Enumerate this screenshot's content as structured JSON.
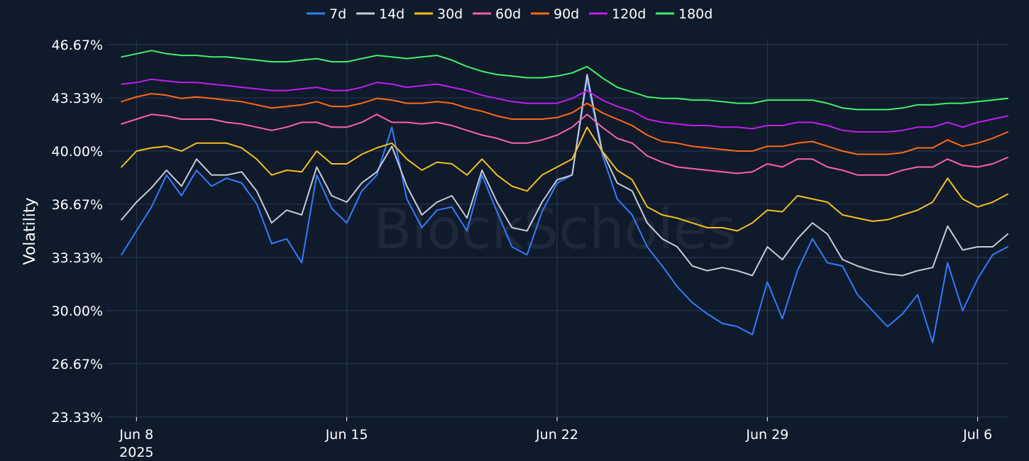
{
  "watermark": "BlockScholes",
  "chart_data": {
    "type": "line",
    "title": "",
    "ylabel": "Volatility",
    "xlabel": "",
    "ylim": [
      23.33,
      46.67
    ],
    "xlim": [
      "2025-06-07",
      "2025-07-07"
    ],
    "grid": true,
    "legend_position": "top-center",
    "y_ticks": [
      {
        "value": 46.67,
        "label": "46.67%"
      },
      {
        "value": 43.33,
        "label": "43.33%"
      },
      {
        "value": 40.0,
        "label": "40.00%"
      },
      {
        "value": 36.67,
        "label": "36.67%"
      },
      {
        "value": 33.33,
        "label": "33.33%"
      },
      {
        "value": 30.0,
        "label": "30.00%"
      },
      {
        "value": 26.67,
        "label": "26.67%"
      },
      {
        "value": 23.33,
        "label": "23.33%"
      }
    ],
    "x_ticks": [
      {
        "date": "2025-06-08",
        "label": "Jun 8",
        "sublabel": "2025"
      },
      {
        "date": "2025-06-15",
        "label": "Jun 15",
        "sublabel": ""
      },
      {
        "date": "2025-06-22",
        "label": "Jun 22",
        "sublabel": ""
      },
      {
        "date": "2025-06-29",
        "label": "Jun 29",
        "sublabel": ""
      },
      {
        "date": "2025-07-06",
        "label": "Jul 6",
        "sublabel": ""
      }
    ],
    "x": [
      "2025-06-07 12:00",
      "2025-06-08 00:00",
      "2025-06-08 12:00",
      "2025-06-09 00:00",
      "2025-06-09 12:00",
      "2025-06-10 00:00",
      "2025-06-10 12:00",
      "2025-06-11 00:00",
      "2025-06-11 12:00",
      "2025-06-12 00:00",
      "2025-06-12 12:00",
      "2025-06-13 00:00",
      "2025-06-13 12:00",
      "2025-06-14 00:00",
      "2025-06-14 12:00",
      "2025-06-15 00:00",
      "2025-06-15 12:00",
      "2025-06-16 00:00",
      "2025-06-16 12:00",
      "2025-06-17 00:00",
      "2025-06-17 12:00",
      "2025-06-18 00:00",
      "2025-06-18 12:00",
      "2025-06-19 00:00",
      "2025-06-19 12:00",
      "2025-06-20 00:00",
      "2025-06-20 12:00",
      "2025-06-21 00:00",
      "2025-06-21 12:00",
      "2025-06-22 00:00",
      "2025-06-22 12:00",
      "2025-06-23 00:00",
      "2025-06-23 12:00",
      "2025-06-24 00:00",
      "2025-06-24 12:00",
      "2025-06-25 00:00",
      "2025-06-25 12:00",
      "2025-06-26 00:00",
      "2025-06-26 12:00",
      "2025-06-27 00:00",
      "2025-06-27 12:00",
      "2025-06-28 00:00",
      "2025-06-28 12:00",
      "2025-06-29 00:00",
      "2025-06-29 12:00",
      "2025-06-30 00:00",
      "2025-06-30 12:00",
      "2025-07-01 00:00",
      "2025-07-01 12:00",
      "2025-07-02 00:00",
      "2025-07-02 12:00",
      "2025-07-03 00:00",
      "2025-07-03 12:00",
      "2025-07-04 00:00",
      "2025-07-04 12:00",
      "2025-07-05 00:00",
      "2025-07-05 12:00",
      "2025-07-06 00:00",
      "2025-07-06 12:00",
      "2025-07-07 00:00"
    ],
    "series": [
      {
        "name": "7d",
        "color": "#2f7dff",
        "values": [
          33.5,
          35.0,
          36.5,
          38.5,
          37.2,
          38.8,
          37.8,
          38.3,
          38.0,
          36.7,
          34.2,
          34.5,
          33.0,
          38.5,
          36.4,
          35.5,
          37.5,
          38.5,
          41.5,
          37.0,
          35.2,
          36.3,
          36.5,
          35.0,
          38.5,
          36.2,
          34.0,
          33.5,
          36.2,
          38.0,
          38.5,
          44.5,
          39.8,
          37.0,
          36.0,
          34.0,
          32.8,
          31.5,
          30.5,
          29.8,
          29.2,
          29.0,
          28.5,
          31.8,
          29.5,
          32.5,
          34.5,
          33.0,
          32.8,
          31.0,
          30.0,
          29.0,
          29.8,
          31.0,
          28.0,
          33.0,
          30.0,
          32.0,
          33.5,
          34.0
        ]
      },
      {
        "name": "14d",
        "color": "#c8ccd6",
        "values": [
          35.7,
          36.8,
          37.7,
          38.8,
          37.8,
          39.5,
          38.5,
          38.5,
          38.7,
          37.5,
          35.5,
          36.3,
          36.0,
          39.0,
          37.2,
          36.8,
          38.0,
          38.7,
          40.3,
          37.8,
          36.0,
          36.8,
          37.2,
          35.8,
          38.8,
          36.8,
          35.2,
          35.0,
          36.8,
          38.2,
          38.5,
          44.8,
          40.0,
          38.0,
          37.5,
          35.5,
          34.5,
          34.0,
          32.8,
          32.5,
          32.7,
          32.5,
          32.2,
          34.0,
          33.2,
          34.5,
          35.5,
          34.8,
          33.2,
          32.8,
          32.5,
          32.3,
          32.2,
          32.5,
          32.7,
          35.3,
          33.8,
          34.0,
          34.0,
          34.8
        ]
      },
      {
        "name": "30d",
        "color": "#f5c01a",
        "values": [
          39.0,
          40.0,
          40.2,
          40.3,
          40.0,
          40.5,
          40.5,
          40.5,
          40.2,
          39.5,
          38.5,
          38.8,
          38.7,
          40.0,
          39.2,
          39.2,
          39.8,
          40.2,
          40.5,
          39.5,
          38.8,
          39.3,
          39.2,
          38.5,
          39.5,
          38.5,
          37.8,
          37.5,
          38.5,
          39.0,
          39.5,
          41.5,
          40.0,
          38.8,
          38.2,
          36.5,
          36.0,
          35.8,
          35.5,
          35.2,
          35.2,
          35.0,
          35.5,
          36.3,
          36.2,
          37.2,
          37.0,
          36.8,
          36.0,
          35.8,
          35.6,
          35.7,
          36.0,
          36.3,
          36.8,
          38.3,
          37.0,
          36.5,
          36.8,
          37.3
        ]
      },
      {
        "name": "60d",
        "color": "#ff5fab",
        "values": [
          41.7,
          42.0,
          42.3,
          42.2,
          42.0,
          42.0,
          42.0,
          41.8,
          41.7,
          41.5,
          41.3,
          41.5,
          41.8,
          41.8,
          41.5,
          41.5,
          41.8,
          42.3,
          41.8,
          41.8,
          41.7,
          41.8,
          41.6,
          41.3,
          41.0,
          40.8,
          40.5,
          40.5,
          40.7,
          41.0,
          41.5,
          42.3,
          41.5,
          40.8,
          40.5,
          39.7,
          39.3,
          39.0,
          38.9,
          38.8,
          38.7,
          38.6,
          38.7,
          39.2,
          39.0,
          39.5,
          39.5,
          39.0,
          38.8,
          38.5,
          38.5,
          38.5,
          38.8,
          39.0,
          39.0,
          39.5,
          39.1,
          39.0,
          39.2,
          39.6
        ]
      },
      {
        "name": "90d",
        "color": "#ff6a12",
        "values": [
          43.1,
          43.4,
          43.6,
          43.5,
          43.3,
          43.4,
          43.3,
          43.2,
          43.1,
          42.9,
          42.7,
          42.8,
          42.9,
          43.1,
          42.8,
          42.8,
          43.0,
          43.3,
          43.2,
          43.0,
          43.0,
          43.1,
          43.0,
          42.7,
          42.5,
          42.2,
          42.0,
          42.0,
          42.0,
          42.1,
          42.4,
          43.0,
          42.4,
          42.0,
          41.6,
          41.0,
          40.6,
          40.5,
          40.3,
          40.2,
          40.1,
          40.0,
          40.0,
          40.3,
          40.3,
          40.5,
          40.6,
          40.3,
          40.0,
          39.8,
          39.8,
          39.8,
          39.9,
          40.2,
          40.2,
          40.7,
          40.3,
          40.5,
          40.8,
          41.2
        ]
      },
      {
        "name": "120d",
        "color": "#c21cf0",
        "values": [
          44.2,
          44.3,
          44.5,
          44.4,
          44.3,
          44.3,
          44.2,
          44.1,
          44.0,
          43.9,
          43.8,
          43.8,
          43.9,
          44.0,
          43.8,
          43.8,
          44.0,
          44.3,
          44.2,
          44.0,
          44.1,
          44.2,
          44.0,
          43.8,
          43.5,
          43.3,
          43.1,
          43.0,
          43.0,
          43.0,
          43.3,
          43.8,
          43.2,
          42.8,
          42.5,
          42.0,
          41.8,
          41.7,
          41.6,
          41.6,
          41.5,
          41.5,
          41.4,
          41.6,
          41.6,
          41.8,
          41.8,
          41.6,
          41.3,
          41.2,
          41.2,
          41.2,
          41.3,
          41.5,
          41.5,
          41.8,
          41.5,
          41.8,
          42.0,
          42.2
        ]
      },
      {
        "name": "180d",
        "color": "#3ef268",
        "values": [
          45.9,
          46.1,
          46.3,
          46.1,
          46.0,
          46.0,
          45.9,
          45.9,
          45.8,
          45.7,
          45.6,
          45.6,
          45.7,
          45.8,
          45.6,
          45.6,
          45.8,
          46.0,
          45.9,
          45.8,
          45.9,
          46.0,
          45.7,
          45.3,
          45.0,
          44.8,
          44.7,
          44.6,
          44.6,
          44.7,
          44.9,
          45.3,
          44.6,
          44.0,
          43.7,
          43.4,
          43.3,
          43.3,
          43.2,
          43.2,
          43.1,
          43.0,
          43.0,
          43.2,
          43.2,
          43.2,
          43.2,
          43.0,
          42.7,
          42.6,
          42.6,
          42.6,
          42.7,
          42.9,
          42.9,
          43.0,
          43.0,
          43.1,
          43.2,
          43.3
        ]
      }
    ]
  }
}
